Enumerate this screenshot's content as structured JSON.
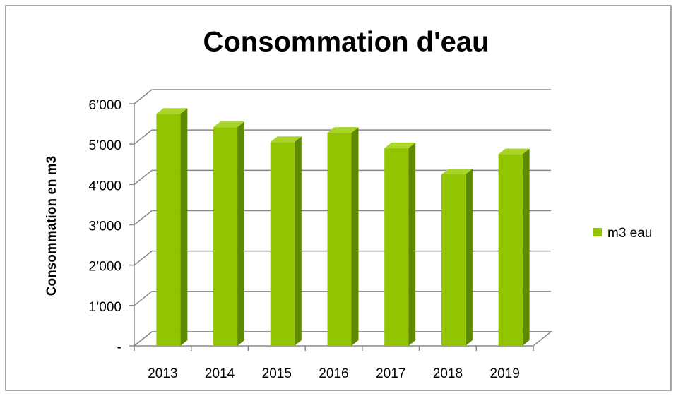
{
  "chart_data": {
    "type": "bar",
    "title": "Consommation d'eau",
    "y_label": "Consommation  en m3",
    "categories": [
      "2013",
      "2014",
      "2015",
      "2016",
      "2017",
      "2018",
      "2019"
    ],
    "series": [
      {
        "name": "m3 eau",
        "color": "#92c500",
        "values": [
          5750,
          5420,
          5050,
          5280,
          4900,
          4250,
          4750
        ]
      }
    ],
    "ylim": [
      0,
      6000
    ],
    "yticks": [
      {
        "value": 0,
        "label": "-"
      },
      {
        "value": 1000,
        "label": "1’000"
      },
      {
        "value": 2000,
        "label": "2’000"
      },
      {
        "value": 3000,
        "label": "3’000"
      },
      {
        "value": 4000,
        "label": "4’000"
      },
      {
        "value": 5000,
        "label": "5’000"
      },
      {
        "value": 6000,
        "label": "6’000"
      }
    ],
    "grid": true,
    "legend": "right"
  }
}
